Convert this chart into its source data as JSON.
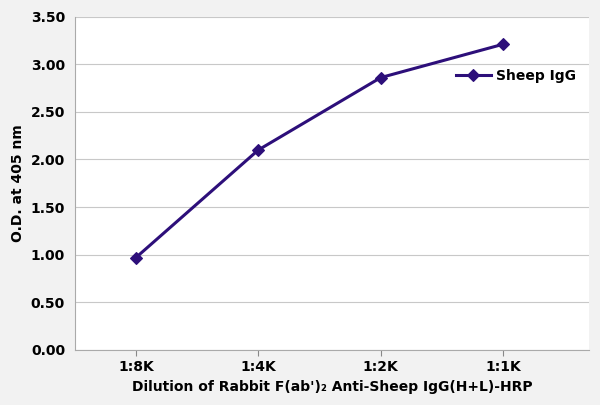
{
  "x_labels": [
    "1:8K",
    "1:4K",
    "1:2K",
    "1:1K"
  ],
  "x_values": [
    1,
    2,
    3,
    4
  ],
  "y_values": [
    0.97,
    2.1,
    2.86,
    3.21
  ],
  "line_color": "#2d0f7a",
  "marker": "D",
  "marker_size": 6,
  "marker_facecolor": "#2d0f7a",
  "line_width": 2.2,
  "ylabel": "O.D. at 405 nm",
  "xlabel": "Dilution of Rabbit F(ab')₂ Anti-Sheep IgG(H+L)-HRP",
  "legend_label": "Sheep IgG",
  "ylim": [
    0.0,
    3.5
  ],
  "yticks": [
    0.0,
    0.5,
    1.0,
    1.5,
    2.0,
    2.5,
    3.0,
    3.5
  ],
  "background_color": "#f2f2f2",
  "plot_bg_color": "#ffffff",
  "grid_color": "#c8c8c8",
  "axis_label_fontsize": 10,
  "tick_fontsize": 10,
  "legend_fontsize": 10,
  "xlim": [
    0.5,
    4.7
  ]
}
